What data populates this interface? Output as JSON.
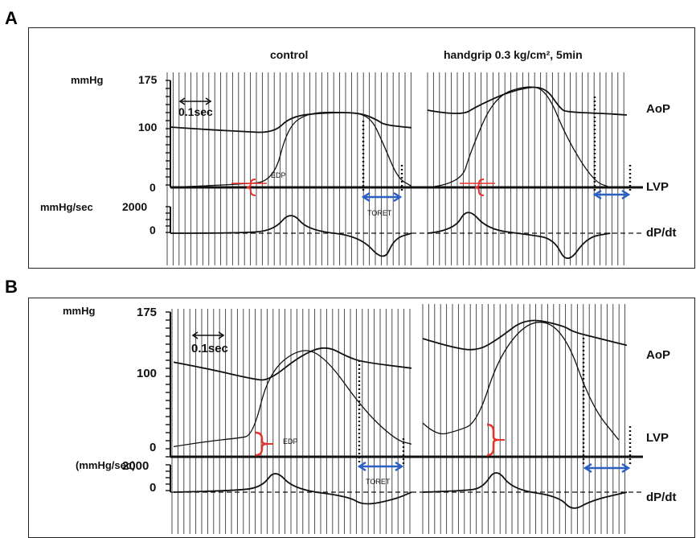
{
  "figure": {
    "panels": [
      {
        "letter": "A",
        "ylabel_pressure": "mmHg",
        "ylabel_dpdt": "mmHg/sec",
        "ticks_pressure": [
          "175",
          "100",
          "0"
        ],
        "ticks_dpdt": [
          "2000",
          "0"
        ],
        "time_scale": "0.1sec",
        "conditions": [
          "control",
          "handgrip  0.3 kg/cm², 5min"
        ],
        "annotations": {
          "edp": "EDP",
          "toret": "TORET"
        },
        "traces": [
          "AoP",
          "LVP",
          "dP/dt"
        ]
      },
      {
        "letter": "B",
        "ylabel_pressure": "mmHg",
        "ylabel_dpdt": "(mmHg/sec)",
        "ticks_pressure": [
          "175",
          "100",
          "0"
        ],
        "ticks_dpdt": [
          "2000",
          "0"
        ],
        "time_scale": "0.1sec",
        "annotations": {
          "edp": "EDP",
          "toret": "TORET"
        },
        "traces": [
          "AoP",
          "LVP",
          "dP/dt"
        ]
      }
    ],
    "colors": {
      "edp_marker": "#e8312b",
      "toret_arrow": "#2a5fc4",
      "trace": "#111111"
    }
  },
  "chart_data": [
    {
      "type": "line",
      "panel": "A",
      "condition": "control",
      "ylim_pressure": [
        0,
        175
      ],
      "ylim_dpdt": [
        -2000,
        2000
      ],
      "x_unit": "sec",
      "series": [
        {
          "name": "AoP",
          "x": [
            0,
            0.1,
            0.2,
            0.3,
            0.35,
            0.45,
            0.55,
            0.6,
            0.62,
            0.68,
            0.7
          ],
          "y": [
            100,
            96,
            93,
            90,
            118,
            124,
            124,
            112,
            104,
            100,
            99
          ]
        },
        {
          "name": "LVP",
          "x": [
            0,
            0.2,
            0.3,
            0.34,
            0.4,
            0.5,
            0.58,
            0.62,
            0.66,
            0.7
          ],
          "y": [
            0,
            5,
            10,
            100,
            124,
            125,
            120,
            70,
            15,
            2
          ]
        },
        {
          "name": "dP/dt",
          "x": [
            0,
            0.2,
            0.3,
            0.35,
            0.4,
            0.55,
            0.62,
            0.65,
            0.7
          ],
          "y": [
            0,
            0,
            200,
            1700,
            200,
            -200,
            -2200,
            -400,
            0
          ]
        }
      ]
    },
    {
      "type": "line",
      "panel": "A",
      "condition": "handgrip  0.3 kg/cm², 5min",
      "ylim_pressure": [
        0,
        175
      ],
      "ylim_dpdt": [
        -2000,
        2000
      ],
      "x_unit": "sec",
      "series": [
        {
          "name": "AoP",
          "x": [
            0,
            0.1,
            0.15,
            0.25,
            0.35,
            0.4,
            0.42,
            0.55,
            0.6
          ],
          "y": [
            128,
            118,
            135,
            160,
            170,
            130,
            125,
            122,
            120
          ]
        },
        {
          "name": "LVP",
          "x": [
            0,
            0.1,
            0.13,
            0.2,
            0.3,
            0.36,
            0.42,
            0.5,
            0.55
          ],
          "y": [
            0,
            5,
            60,
            150,
            170,
            160,
            80,
            10,
            0
          ]
        },
        {
          "name": "dP/dt",
          "x": [
            0,
            0.08,
            0.12,
            0.18,
            0.3,
            0.38,
            0.42,
            0.48,
            0.55
          ],
          "y": [
            0,
            200,
            2000,
            300,
            -100,
            -400,
            -2400,
            -300,
            0
          ]
        }
      ]
    },
    {
      "type": "line",
      "panel": "B",
      "condition": "control",
      "ylim_pressure": [
        0,
        175
      ],
      "ylim_dpdt": [
        -2000,
        2000
      ],
      "x_unit": "sec",
      "series": [
        {
          "name": "AoP",
          "x": [
            0,
            0.1,
            0.25,
            0.3,
            0.4,
            0.48,
            0.55,
            0.6,
            0.75
          ],
          "y": [
            112,
            105,
            92,
            90,
            120,
            132,
            118,
            112,
            105
          ]
        },
        {
          "name": "LVP",
          "x": [
            0,
            0.1,
            0.2,
            0.25,
            0.3,
            0.4,
            0.48,
            0.6,
            0.7,
            0.75
          ],
          "y": [
            12,
            18,
            22,
            25,
            100,
            130,
            118,
            55,
            20,
            15
          ]
        },
        {
          "name": "dP/dt",
          "x": [
            0,
            0.2,
            0.28,
            0.32,
            0.38,
            0.55,
            0.6,
            0.7,
            0.75
          ],
          "y": [
            0,
            100,
            400,
            1700,
            200,
            -300,
            -1000,
            -500,
            0
          ]
        }
      ]
    },
    {
      "type": "line",
      "panel": "B",
      "condition": "handgrip  0.3 kg/cm², 5min",
      "ylim_pressure": [
        0,
        175
      ],
      "ylim_dpdt": [
        -2000,
        2000
      ],
      "x_unit": "sec",
      "series": [
        {
          "name": "AoP",
          "x": [
            0,
            0.1,
            0.2,
            0.28,
            0.38,
            0.52,
            0.55,
            0.65,
            0.75
          ],
          "y": [
            140,
            130,
            125,
            140,
            165,
            155,
            148,
            140,
            132
          ]
        },
        {
          "name": "LVP",
          "x": [
            0,
            0.05,
            0.12,
            0.2,
            0.28,
            0.4,
            0.52,
            0.62,
            0.72
          ],
          "y": [
            40,
            25,
            30,
            40,
            120,
            165,
            150,
            60,
            20
          ]
        },
        {
          "name": "dP/dt",
          "x": [
            0,
            0.15,
            0.22,
            0.27,
            0.33,
            0.5,
            0.55,
            0.62,
            0.75
          ],
          "y": [
            0,
            100,
            300,
            1800,
            200,
            -300,
            -1400,
            -600,
            0
          ]
        }
      ]
    }
  ]
}
